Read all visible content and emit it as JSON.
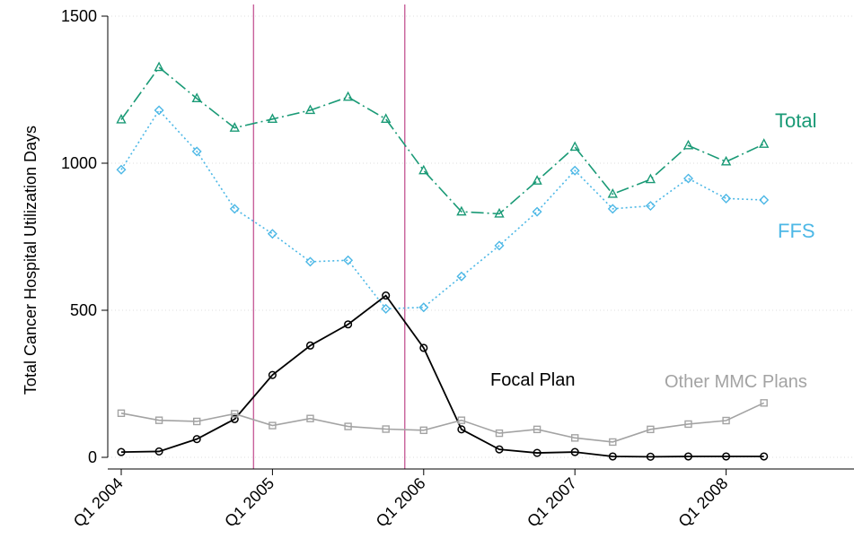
{
  "chart_data": {
    "type": "line",
    "ylabel": "Total Cancer Hospital Utilization Days",
    "ylim": [
      0,
      1500
    ],
    "y_ticks": [
      "0",
      "500",
      "1000",
      "1500"
    ],
    "x_tick_labels": [
      "Q1 2004",
      "Q1 2005",
      "Q1 2006",
      "Q1 2007",
      "Q1 2008"
    ],
    "x": [
      "2004Q1",
      "2004Q2",
      "2004Q3",
      "2004Q4",
      "2005Q1",
      "2005Q2",
      "2005Q3",
      "2005Q4",
      "2006Q1",
      "2006Q2",
      "2006Q3",
      "2006Q4",
      "2007Q1",
      "2007Q2",
      "2007Q3",
      "2007Q4",
      "2008Q1",
      "2008Q2"
    ],
    "vertical_lines_between": [
      [
        "2004Q4",
        "2005Q1"
      ],
      [
        "2005Q4",
        "2006Q1"
      ]
    ],
    "grid": "horizontal",
    "series": [
      {
        "name": "Total",
        "color": "#1a9a76",
        "marker": "triangle",
        "values": [
          1148,
          1326,
          1220,
          1120,
          1150,
          1180,
          1225,
          1150,
          975,
          835,
          828,
          940,
          1055,
          895,
          945,
          1060,
          1005,
          1065
        ]
      },
      {
        "name": "FFS",
        "color": "#4db8e6",
        "marker": "diamond",
        "values": [
          978,
          1180,
          1040,
          845,
          760,
          665,
          670,
          505,
          510,
          615,
          720,
          835,
          975,
          845,
          855,
          948,
          880,
          875
        ]
      },
      {
        "name": "Focal Plan",
        "color": "#000000",
        "marker": "circle",
        "values": [
          18,
          20,
          62,
          130,
          280,
          380,
          452,
          550,
          372,
          95,
          27,
          15,
          18,
          3,
          2,
          3,
          3,
          3
        ]
      },
      {
        "name": "Other MMC Plans",
        "color": "#a3a3a3",
        "marker": "square",
        "values": [
          150,
          126,
          122,
          148,
          108,
          132,
          105,
          96,
          92,
          126,
          82,
          95,
          66,
          52,
          95,
          113,
          125,
          185
        ]
      }
    ]
  }
}
